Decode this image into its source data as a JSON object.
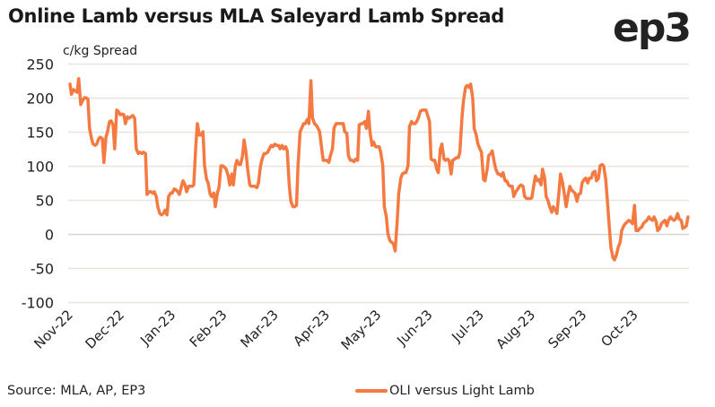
{
  "header": {
    "title": "Online Lamb versus MLA Saleyard Lamb Spread",
    "logo": "ep3"
  },
  "footer": {
    "source": "Source: MLA, AP, EP3"
  },
  "colors": {
    "series": "#F47A42",
    "grid": "#E8E6DC",
    "zero_line": "#D6D6D6",
    "text": "#222222"
  },
  "chart_data": {
    "type": "line",
    "title": "Online Lamb versus MLA Saleyard Lamb Spread",
    "xlabel": "",
    "ylabel": "c/kg Spread",
    "ylim": [
      -100,
      250
    ],
    "yticks": [
      250,
      200,
      150,
      100,
      50,
      0,
      -50,
      -100
    ],
    "categories": [
      "Nov-22",
      "Dec-22",
      "Jan-23",
      "Feb-23",
      "Mar-23",
      "Apr-23",
      "May-23",
      "Jun-23",
      "Jul-23",
      "Aug-23",
      "Sep-23",
      "Oct-23"
    ],
    "xlim_months": [
      0,
      12.05
    ],
    "grid": true,
    "legend_position": "bottom-center",
    "series": [
      {
        "name": "OLI versus Light Lamb",
        "x_months": [
          0.0,
          0.03,
          0.07,
          0.1,
          0.14,
          0.17,
          0.21,
          0.24,
          0.28,
          0.31,
          0.35,
          0.38,
          0.42,
          0.45,
          0.49,
          0.52,
          0.56,
          0.59,
          0.63,
          0.66,
          0.7,
          0.73,
          0.77,
          0.8,
          0.84,
          0.87,
          0.91,
          0.94,
          0.98,
          1.01,
          1.05,
          1.08,
          1.12,
          1.15,
          1.19,
          1.22,
          1.26,
          1.29,
          1.33,
          1.36,
          1.4,
          1.43,
          1.47,
          1.5,
          1.54,
          1.57,
          1.61,
          1.64,
          1.68,
          1.71,
          1.75,
          1.78,
          1.82,
          1.85,
          1.89,
          1.92,
          1.96,
          1.99,
          2.03,
          2.06,
          2.1,
          2.13,
          2.17,
          2.2,
          2.24,
          2.27,
          2.31,
          2.34,
          2.38,
          2.41,
          2.45,
          2.48,
          2.52,
          2.55,
          2.59,
          2.62,
          2.66,
          2.69,
          2.73,
          2.76,
          2.8,
          2.83,
          2.87,
          2.9,
          2.94,
          2.97,
          3.01,
          3.04,
          3.08,
          3.11,
          3.15,
          3.18,
          3.22,
          3.25,
          3.29,
          3.32,
          3.36,
          3.39,
          3.43,
          3.46,
          3.5,
          3.53,
          3.57,
          3.6,
          3.64,
          3.67,
          3.71,
          3.74,
          3.78,
          3.81,
          3.85,
          3.88,
          3.92,
          3.95,
          3.99,
          4.02,
          4.06,
          4.09,
          4.13,
          4.16,
          4.2,
          4.23,
          4.27,
          4.3,
          4.34,
          4.37,
          4.41,
          4.44,
          4.48,
          4.51,
          4.55,
          4.58,
          4.62,
          4.65,
          4.69,
          4.72,
          4.76,
          4.79,
          4.83,
          4.86,
          4.9,
          4.93,
          4.97,
          5.0,
          5.04,
          5.07,
          5.11,
          5.14,
          5.18,
          5.21,
          5.25,
          5.28,
          5.32,
          5.35,
          5.39,
          5.42,
          5.46,
          5.49,
          5.53,
          5.56,
          5.6,
          5.63,
          5.67,
          5.7,
          5.74,
          5.77,
          5.81,
          5.84,
          5.88,
          5.91,
          5.95,
          5.98,
          6.02,
          6.05,
          6.09,
          6.12,
          6.16,
          6.19,
          6.23,
          6.26,
          6.3,
          6.33,
          6.37,
          6.4,
          6.44,
          6.47,
          6.51,
          6.54,
          6.58,
          6.61,
          6.65,
          6.68,
          6.72,
          6.75,
          6.79,
          6.82,
          6.86,
          6.89,
          6.93,
          6.96,
          7.0,
          7.03,
          7.07,
          7.1,
          7.14,
          7.17,
          7.21,
          7.24,
          7.28,
          7.31,
          7.35,
          7.38,
          7.42,
          7.45,
          7.49,
          7.52,
          7.56,
          7.59,
          7.63,
          7.66,
          7.7,
          7.73,
          7.77,
          7.8,
          7.84,
          7.87,
          7.91,
          7.94,
          7.98,
          8.01,
          8.05,
          8.08,
          8.12,
          8.15,
          8.19,
          8.22,
          8.26,
          8.29,
          8.33,
          8.36,
          8.4,
          8.43,
          8.47,
          8.5,
          8.54,
          8.57,
          8.61,
          8.64,
          8.68,
          8.71,
          8.75,
          8.78,
          8.82,
          8.85,
          8.89,
          8.92,
          8.96,
          8.99,
          9.03,
          9.06,
          9.1,
          9.13,
          9.17,
          9.2,
          9.24,
          9.27,
          9.31,
          9.34,
          9.38,
          9.41,
          9.45,
          9.48,
          9.52,
          9.55,
          9.59,
          9.62,
          9.66,
          9.69,
          9.73,
          9.76,
          9.8,
          9.83,
          9.87,
          9.9,
          9.94,
          9.97,
          10.01,
          10.04,
          10.08,
          10.11,
          10.15,
          10.18,
          10.22,
          10.25,
          10.29,
          10.32,
          10.36,
          10.39,
          10.43,
          10.46,
          10.5,
          10.53,
          10.57,
          10.6,
          10.64,
          10.67,
          10.71,
          10.74,
          10.78,
          10.81,
          10.85,
          10.88,
          10.92,
          10.95,
          10.99,
          11.02,
          11.06,
          11.09,
          11.13,
          11.16,
          11.2,
          11.23,
          11.27,
          11.3,
          11.34,
          11.37,
          11.41,
          11.44,
          11.48,
          11.51,
          11.55,
          11.58,
          11.62,
          11.65,
          11.69,
          11.72,
          11.76,
          11.79,
          11.83,
          11.86,
          11.9,
          11.93,
          11.97,
          12.0,
          12.03
        ],
        "values": [
          220,
          205,
          212,
          210,
          208,
          228,
          190,
          195,
          200,
          200,
          198,
          155,
          140,
          132,
          130,
          132,
          140,
          142,
          140,
          105,
          142,
          150,
          165,
          166,
          160,
          125,
          182,
          180,
          175,
          176,
          175,
          162,
          172,
          170,
          172,
          174,
          170,
          125,
          118,
          120,
          118,
          120,
          118,
          58,
          62,
          62,
          60,
          62,
          55,
          40,
          30,
          28,
          30,
          35,
          28,
          55,
          60,
          60,
          66,
          65,
          62,
          58,
          70,
          78,
          72,
          62,
          70,
          70,
          70,
          72,
          130,
          162,
          145,
          145,
          150,
          100,
          80,
          75,
          58,
          55,
          60,
          40,
          60,
          68,
          100,
          100,
          98,
          95,
          85,
          72,
          88,
          72,
          100,
          108,
          102,
          102,
          115,
          138,
          118,
          95,
          72,
          70,
          70,
          70,
          68,
          75,
          100,
          110,
          118,
          118,
          120,
          125,
          130,
          128,
          132,
          130,
          130,
          125,
          130,
          125,
          128,
          122,
          70,
          48,
          40,
          40,
          42,
          100,
          150,
          155,
          162,
          162,
          168,
          162,
          225,
          170,
          162,
          160,
          155,
          150,
          125,
          108,
          108,
          108,
          105,
          115,
          125,
          155,
          162,
          162,
          162,
          162,
          162,
          150,
          148,
          115,
          108,
          108,
          106,
          110,
          108,
          160,
          162,
          162,
          165,
          155,
          180,
          150,
          130,
          135,
          128,
          128,
          128,
          120,
          100,
          40,
          25,
          0,
          -10,
          -12,
          -15,
          -25,
          20,
          60,
          82,
          88,
          90,
          90,
          100,
          158,
          165,
          162,
          162,
          165,
          172,
          180,
          182,
          182,
          182,
          175,
          165,
          110,
          108,
          108,
          95,
          90,
          125,
          132,
          110,
          108,
          110,
          108,
          88,
          108,
          110,
          112,
          112,
          120,
          170,
          195,
          215,
          218,
          215,
          220,
          200,
          155,
          145,
          132,
          125,
          120,
          80,
          78,
          95,
          115,
          118,
          122,
          105,
          95,
          88,
          88,
          85,
          90,
          78,
          78,
          72,
          70,
          70,
          55,
          62,
          65,
          70,
          72,
          70,
          55,
          52,
          52,
          52,
          53,
          72,
          85,
          78,
          80,
          72,
          95,
          82,
          55,
          48,
          40,
          32,
          40,
          35,
          30,
          62,
          88,
          75,
          60,
          40,
          55,
          70,
          65,
          62,
          60,
          48,
          58,
          60,
          75,
          80,
          82,
          75,
          82,
          82,
          90,
          92,
          78,
          82,
          100,
          102,
          100,
          80,
          50,
          10,
          -20,
          -35,
          -38,
          -30,
          -20,
          -12,
          5,
          12,
          15,
          18,
          20,
          18,
          15,
          42,
          5,
          5,
          8,
          10,
          15,
          18,
          20,
          25,
          22,
          20,
          25,
          18,
          5,
          8,
          15,
          18,
          20,
          12,
          20,
          25,
          22,
          20,
          22,
          30,
          22,
          20,
          8,
          10,
          12,
          25,
          20,
          28
        ]
      }
    ]
  }
}
